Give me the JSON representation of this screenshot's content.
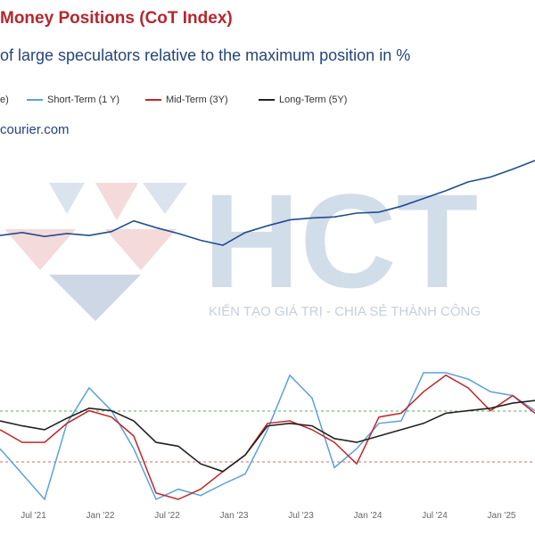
{
  "chart_title": "Money Positions (CoT Index)",
  "chart_subtitle": "of large speculators relative to the maximum position in %",
  "source": "courier.com",
  "legend": {
    "partial": "e)",
    "short": "Short-Term (1 Y)",
    "mid": "Mid-Term (3Y)",
    "long": "Long-Term (5Y)"
  },
  "watermark": {
    "logo_text": "HCT",
    "tagline": "KIẾN TẠO GIÁ TRỊ - CHIA SẺ THÀNH CÔNG"
  },
  "colors": {
    "title": "#b5272d",
    "subtitle": "#24457a",
    "price": "#1f4e8c",
    "short": "#5aa2dc",
    "mid": "#c0262c",
    "long": "#222222",
    "upper_ref": "#5cab5a",
    "lower_ref": "#d66a6a"
  },
  "chart_data": [
    {
      "type": "line",
      "title": "",
      "xlabel": "",
      "ylabel": "",
      "x": [
        "2021-04",
        "2021-06",
        "2021-08",
        "2021-10",
        "2021-12",
        "2022-02",
        "2022-04",
        "2022-06",
        "2022-08",
        "2022-10",
        "2022-12",
        "2023-02",
        "2023-04",
        "2023-06",
        "2023-08",
        "2023-10",
        "2023-12",
        "2024-02",
        "2024-04",
        "2024-06",
        "2024-08",
        "2024-10",
        "2024-12",
        "2025-02",
        "2025-04"
      ],
      "series": [
        {
          "name": "",
          "values": [
            1.0,
            1.3,
            0.9,
            1.2,
            1.0,
            1.4,
            2.5,
            1.8,
            1.2,
            0.5,
            0.0,
            1.3,
            2.0,
            2.6,
            2.8,
            2.9,
            3.3,
            3.4,
            4.0,
            4.8,
            5.6,
            6.5,
            7.0,
            7.8,
            8.7
          ]
        }
      ]
    },
    {
      "type": "line",
      "title": "",
      "xlabel": "",
      "ylabel": "",
      "x": [
        "2021-04",
        "2021-06",
        "2021-08",
        "2021-10",
        "2021-12",
        "2022-02",
        "2022-04",
        "2022-06",
        "2022-08",
        "2022-10",
        "2022-12",
        "2023-02",
        "2023-04",
        "2023-06",
        "2023-08",
        "2023-10",
        "2023-12",
        "2024-02",
        "2024-04",
        "2024-06",
        "2024-08",
        "2024-10",
        "2024-12",
        "2025-02",
        "2025-04"
      ],
      "x_tick_labels": [
        "Jul '21",
        "Jan '22",
        "Jul '22",
        "Jan '23",
        "Jul '23",
        "Jan '24",
        "Jul '24",
        "Jan '25"
      ],
      "ylim": [
        0,
        100
      ],
      "reference_lines": [
        70,
        30
      ],
      "series": [
        {
          "name": "Short-Term (1 Y)",
          "values": [
            40,
            20,
            0,
            60,
            88,
            70,
            40,
            0,
            8,
            3,
            12,
            20,
            55,
            98,
            80,
            25,
            40,
            60,
            62,
            100,
            100,
            95,
            85,
            82,
            70
          ]
        },
        {
          "name": "Mid-Term (3Y)",
          "values": [
            55,
            45,
            45,
            60,
            70,
            65,
            50,
            5,
            0,
            8,
            22,
            35,
            60,
            62,
            55,
            45,
            28,
            65,
            68,
            85,
            98,
            88,
            70,
            82,
            68
          ]
        },
        {
          "name": "Long-Term (5Y)",
          "values": [
            62,
            58,
            55,
            64,
            72,
            70,
            62,
            45,
            42,
            28,
            22,
            35,
            58,
            60,
            58,
            48,
            45,
            50,
            55,
            60,
            68,
            70,
            72,
            76,
            78
          ]
        }
      ]
    }
  ]
}
